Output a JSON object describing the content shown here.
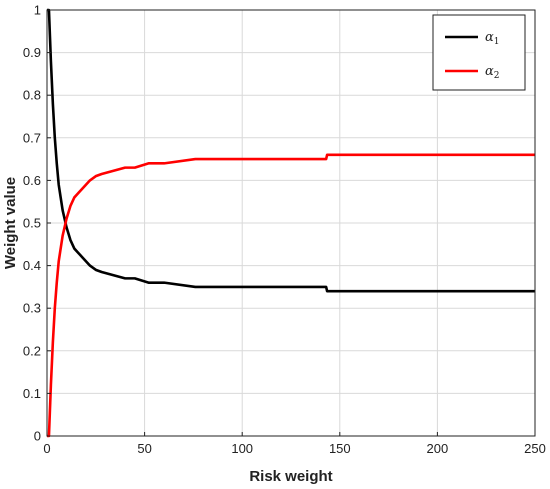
{
  "chart_data": {
    "type": "line",
    "xlabel": "Risk weight",
    "ylabel": "Weight value",
    "xlim": [
      0,
      250
    ],
    "ylim": [
      0,
      1
    ],
    "xticks": [
      0,
      50,
      100,
      150,
      200,
      250
    ],
    "yticks": [
      0,
      0.1,
      0.2,
      0.3,
      0.4,
      0.5,
      0.6,
      0.7,
      0.8,
      0.9,
      1
    ],
    "grid": true,
    "legend_position": "top-right",
    "colors": {
      "alpha1": "#000000",
      "alpha2": "#ff0000"
    },
    "series": [
      {
        "name": "α1",
        "legend_symbol": "α",
        "legend_subscript": "1",
        "color": "#000000",
        "x": [
          0,
          1,
          2,
          3,
          4,
          5,
          6,
          7,
          8,
          10,
          12,
          14,
          16,
          18,
          20,
          22,
          25,
          28,
          32,
          36,
          40,
          45,
          52,
          60,
          76,
          100,
          143,
          143.5,
          200,
          250
        ],
        "y": [
          1.0,
          1.0,
          0.88,
          0.78,
          0.7,
          0.64,
          0.59,
          0.56,
          0.53,
          0.49,
          0.46,
          0.44,
          0.43,
          0.42,
          0.41,
          0.4,
          0.39,
          0.385,
          0.38,
          0.375,
          0.37,
          0.37,
          0.36,
          0.36,
          0.35,
          0.35,
          0.35,
          0.34,
          0.34,
          0.34
        ]
      },
      {
        "name": "α2",
        "legend_symbol": "α",
        "legend_subscript": "2",
        "color": "#ff0000",
        "x": [
          0,
          1,
          2,
          3,
          4,
          5,
          6,
          7,
          8,
          10,
          12,
          14,
          16,
          18,
          20,
          22,
          25,
          28,
          32,
          36,
          40,
          45,
          52,
          60,
          76,
          100,
          143,
          143.5,
          200,
          250
        ],
        "y": [
          0.0,
          0.0,
          0.12,
          0.22,
          0.3,
          0.36,
          0.41,
          0.44,
          0.47,
          0.51,
          0.54,
          0.56,
          0.57,
          0.58,
          0.59,
          0.6,
          0.61,
          0.615,
          0.62,
          0.625,
          0.63,
          0.63,
          0.64,
          0.64,
          0.65,
          0.65,
          0.65,
          0.66,
          0.66,
          0.66
        ]
      }
    ]
  }
}
